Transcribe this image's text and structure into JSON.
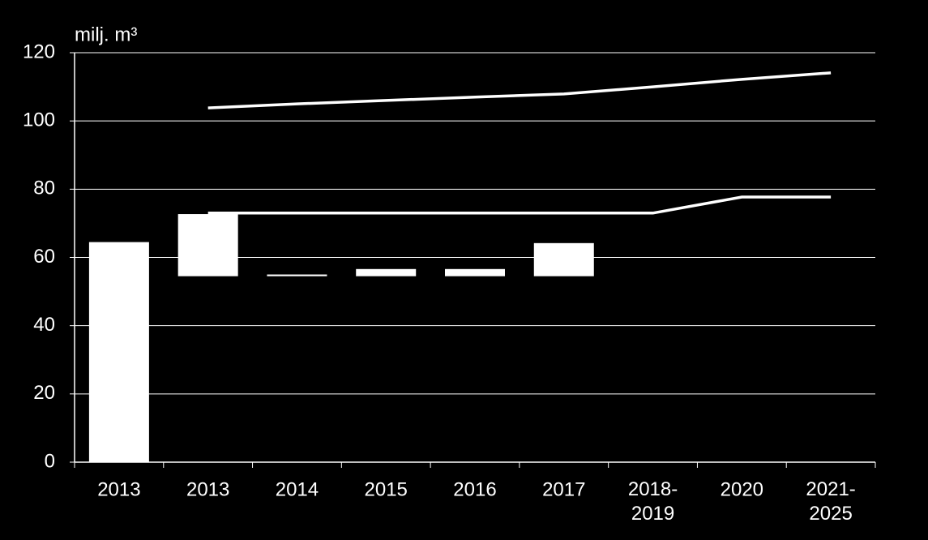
{
  "chart_data": {
    "type": "floating-bar-line",
    "y_label": "milj. m³",
    "categories": [
      "2013",
      "2013",
      "2014",
      "2015",
      "2016",
      "2017",
      "2018-\n2019",
      "2020",
      "2021-\n2025"
    ],
    "bars": {
      "color": "#ffffff",
      "low": [
        0,
        54.5,
        54.5,
        54.5,
        54.5,
        54.5,
        null,
        null,
        null
      ],
      "high": [
        64.5,
        72.7,
        55,
        56.6,
        56.6,
        64.2,
        null,
        null,
        null
      ]
    },
    "series": [
      {
        "color": "#ffffff",
        "values": [
          null,
          103.8,
          105,
          106,
          107,
          107.9,
          110,
          112.2,
          114.1
        ]
      },
      {
        "color": "#ffffff",
        "values": [
          null,
          73,
          73,
          73,
          73,
          73,
          73,
          77.7,
          77.7
        ]
      }
    ],
    "ylim": [
      0,
      120
    ],
    "yticks": [
      0,
      20,
      40,
      60,
      80,
      100,
      120
    ],
    "grid": true
  }
}
